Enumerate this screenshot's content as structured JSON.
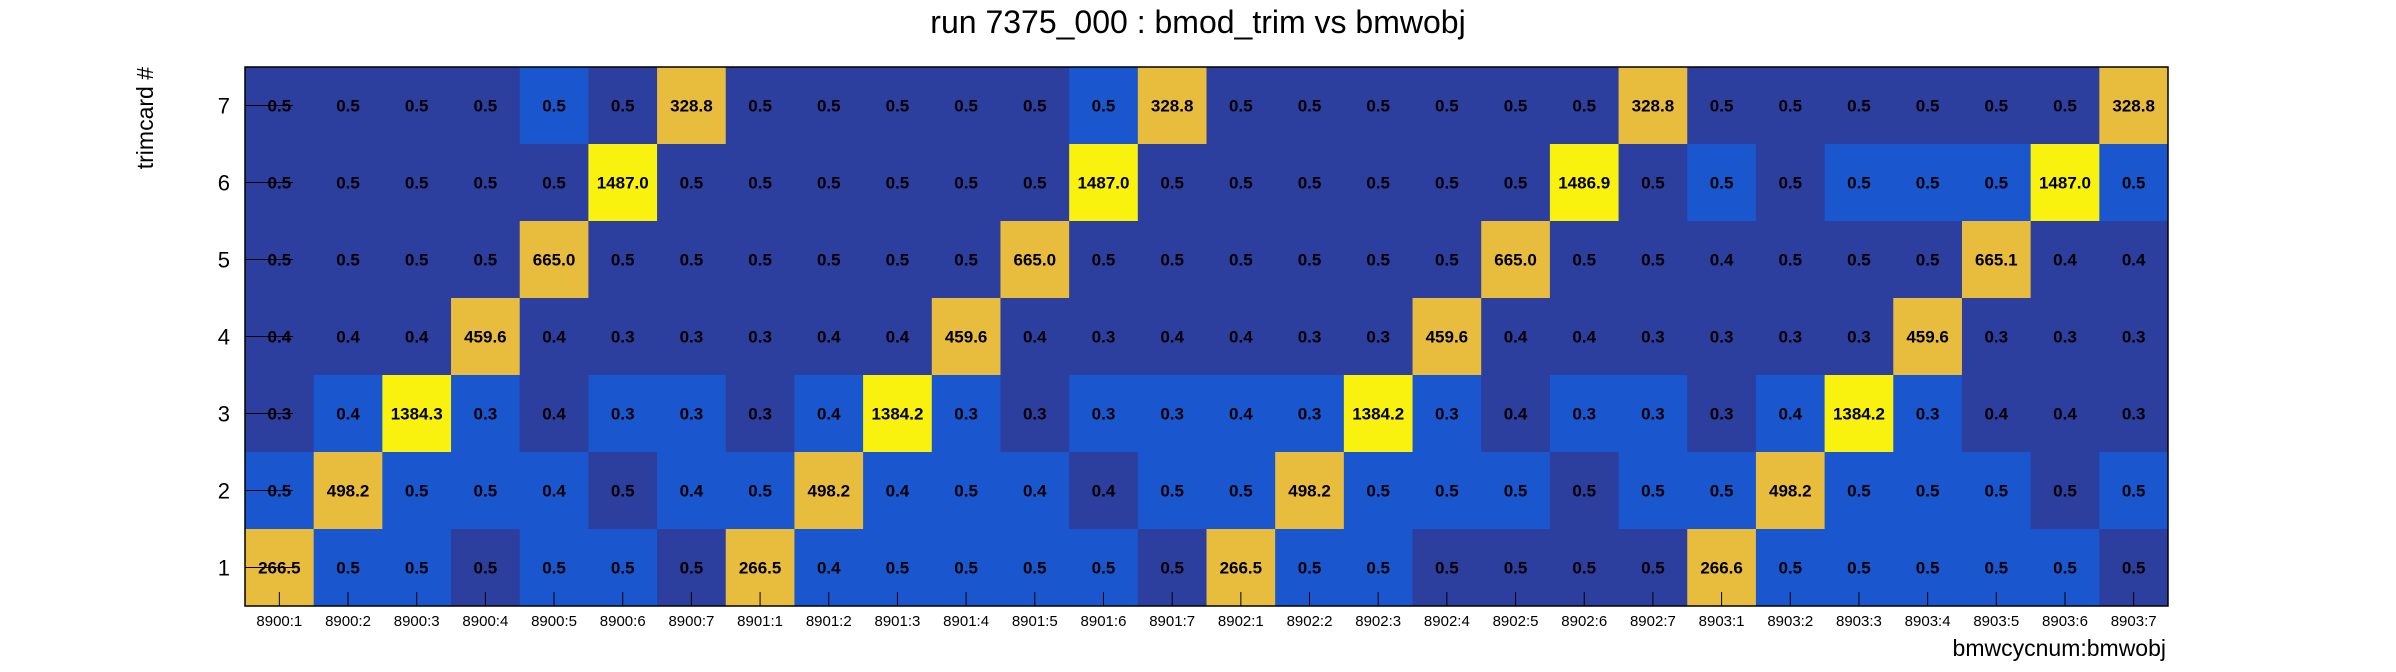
{
  "chart_data": {
    "type": "heatmap",
    "title": "run 7375_000 : bmod_trim vs bmwobj",
    "xlabel": "bmwcycnum:bmwobj",
    "ylabel": "trimcard #",
    "x_categories": [
      "8900:1",
      "8900:2",
      "8900:3",
      "8900:4",
      "8900:5",
      "8900:6",
      "8900:7",
      "8901:1",
      "8901:2",
      "8901:3",
      "8901:4",
      "8901:5",
      "8901:6",
      "8901:7",
      "8902:1",
      "8902:2",
      "8902:3",
      "8902:4",
      "8902:5",
      "8902:6",
      "8902:7",
      "8903:1",
      "8903:2",
      "8903:3",
      "8903:4",
      "8903:5",
      "8903:6",
      "8903:7"
    ],
    "y_categories": [
      "1",
      "2",
      "3",
      "4",
      "5",
      "6",
      "7"
    ],
    "rows": [
      {
        "y": "7",
        "values": [
          "0.5",
          "0.5",
          "0.5",
          "0.5",
          "0.5",
          "0.5",
          "328.8",
          "0.5",
          "0.5",
          "0.5",
          "0.5",
          "0.5",
          "0.5",
          "328.8",
          "0.5",
          "0.5",
          "0.5",
          "0.5",
          "0.5",
          "0.5",
          "328.8",
          "0.5",
          "0.5",
          "0.5",
          "0.5",
          "0.5",
          "0.5",
          "328.8"
        ]
      },
      {
        "y": "6",
        "values": [
          "0.5",
          "0.5",
          "0.5",
          "0.5",
          "0.5",
          "1487.0",
          "0.5",
          "0.5",
          "0.5",
          "0.5",
          "0.5",
          "0.5",
          "1487.0",
          "0.5",
          "0.5",
          "0.5",
          "0.5",
          "0.5",
          "0.5",
          "1486.9",
          "0.5",
          "0.5",
          "0.5",
          "0.5",
          "0.5",
          "0.5",
          "1487.0",
          "0.5"
        ]
      },
      {
        "y": "5",
        "values": [
          "0.5",
          "0.5",
          "0.5",
          "0.5",
          "665.0",
          "0.5",
          "0.5",
          "0.5",
          "0.5",
          "0.5",
          "0.5",
          "665.0",
          "0.5",
          "0.5",
          "0.5",
          "0.5",
          "0.5",
          "0.5",
          "665.0",
          "0.5",
          "0.5",
          "0.4",
          "0.5",
          "0.5",
          "0.5",
          "665.1",
          "0.4",
          "0.4"
        ]
      },
      {
        "y": "4",
        "values": [
          "0.4",
          "0.4",
          "0.4",
          "459.6",
          "0.4",
          "0.3",
          "0.3",
          "0.3",
          "0.4",
          "0.4",
          "459.6",
          "0.4",
          "0.3",
          "0.4",
          "0.4",
          "0.3",
          "0.3",
          "459.6",
          "0.4",
          "0.4",
          "0.3",
          "0.3",
          "0.3",
          "0.3",
          "459.6",
          "0.3",
          "0.3",
          "0.3"
        ]
      },
      {
        "y": "3",
        "values": [
          "0.3",
          "0.4",
          "1384.3",
          "0.3",
          "0.4",
          "0.3",
          "0.3",
          "0.3",
          "0.4",
          "1384.2",
          "0.3",
          "0.3",
          "0.3",
          "0.3",
          "0.4",
          "0.3",
          "1384.2",
          "0.3",
          "0.4",
          "0.3",
          "0.3",
          "0.3",
          "0.4",
          "1384.2",
          "0.3",
          "0.4",
          "0.4",
          "0.3"
        ]
      },
      {
        "y": "2",
        "values": [
          "0.5",
          "498.2",
          "0.5",
          "0.5",
          "0.4",
          "0.5",
          "0.4",
          "0.5",
          "498.2",
          "0.4",
          "0.5",
          "0.4",
          "0.4",
          "0.5",
          "0.5",
          "498.2",
          "0.5",
          "0.5",
          "0.5",
          "0.5",
          "0.5",
          "0.5",
          "498.2",
          "0.5",
          "0.5",
          "0.5",
          "0.5",
          "0.5"
        ]
      },
      {
        "y": "1",
        "values": [
          "266.5",
          "0.5",
          "0.5",
          "0.5",
          "0.5",
          "0.5",
          "0.5",
          "266.5",
          "0.4",
          "0.5",
          "0.5",
          "0.5",
          "0.5",
          "0.5",
          "266.5",
          "0.5",
          "0.5",
          "0.5",
          "0.5",
          "0.5",
          "0.5",
          "266.6",
          "0.5",
          "0.5",
          "0.5",
          "0.5",
          "0.5",
          "0.5"
        ]
      }
    ],
    "colors": {
      "background_dark_blue": "#2C3E9E",
      "bright_blue": "#1A56CE",
      "gold": "#E8BC3C",
      "yellow": "#F9F20E"
    },
    "color_scale": {
      "note_values": "cells with value 0.5 at some positions use bright blue, others dark blue",
      "bright_blue_cells": [
        [
          0,
          0
        ],
        [
          1,
          0
        ],
        [
          2,
          0
        ],
        [
          4,
          0
        ],
        [
          5,
          0
        ],
        [
          7,
          0
        ],
        [
          8,
          0
        ],
        [
          9,
          0
        ],
        [
          10,
          0
        ],
        [
          11,
          0
        ],
        [
          12,
          0
        ],
        [
          14,
          0
        ],
        [
          15,
          0
        ],
        [
          16,
          0
        ],
        [
          22,
          0
        ],
        [
          23,
          0
        ],
        [
          24,
          0
        ],
        [
          25,
          0
        ],
        [
          26,
          0
        ],
        [
          0,
          1
        ],
        [
          1,
          1
        ],
        [
          2,
          1
        ],
        [
          3,
          1
        ],
        [
          4,
          1
        ],
        [
          6,
          1
        ],
        [
          7,
          1
        ],
        [
          8,
          1
        ],
        [
          9,
          1
        ],
        [
          10,
          1
        ],
        [
          11,
          1
        ],
        [
          13,
          1
        ],
        [
          14,
          1
        ],
        [
          15,
          1
        ],
        [
          16,
          1
        ],
        [
          17,
          1
        ],
        [
          18,
          1
        ],
        [
          20,
          1
        ],
        [
          21,
          1
        ],
        [
          22,
          1
        ],
        [
          23,
          1
        ],
        [
          24,
          1
        ],
        [
          25,
          1
        ],
        [
          27,
          1
        ],
        [
          1,
          2
        ],
        [
          2,
          2
        ],
        [
          3,
          2
        ],
        [
          5,
          2
        ],
        [
          6,
          2
        ],
        [
          8,
          2
        ],
        [
          9,
          2
        ],
        [
          10,
          2
        ],
        [
          12,
          2
        ],
        [
          13,
          2
        ],
        [
          14,
          2
        ],
        [
          15,
          2
        ],
        [
          16,
          2
        ],
        [
          17,
          2
        ],
        [
          19,
          2
        ],
        [
          20,
          2
        ],
        [
          22,
          2
        ],
        [
          23,
          2
        ],
        [
          24,
          2
        ],
        [
          21,
          5
        ],
        [
          23,
          5
        ],
        [
          24,
          5
        ],
        [
          25,
          5
        ],
        [
          26,
          5
        ],
        [
          27,
          5
        ],
        [
          4,
          6
        ],
        [
          12,
          6
        ],
        [
          27,
          6
        ]
      ]
    },
    "grid": false,
    "legend": "none"
  }
}
